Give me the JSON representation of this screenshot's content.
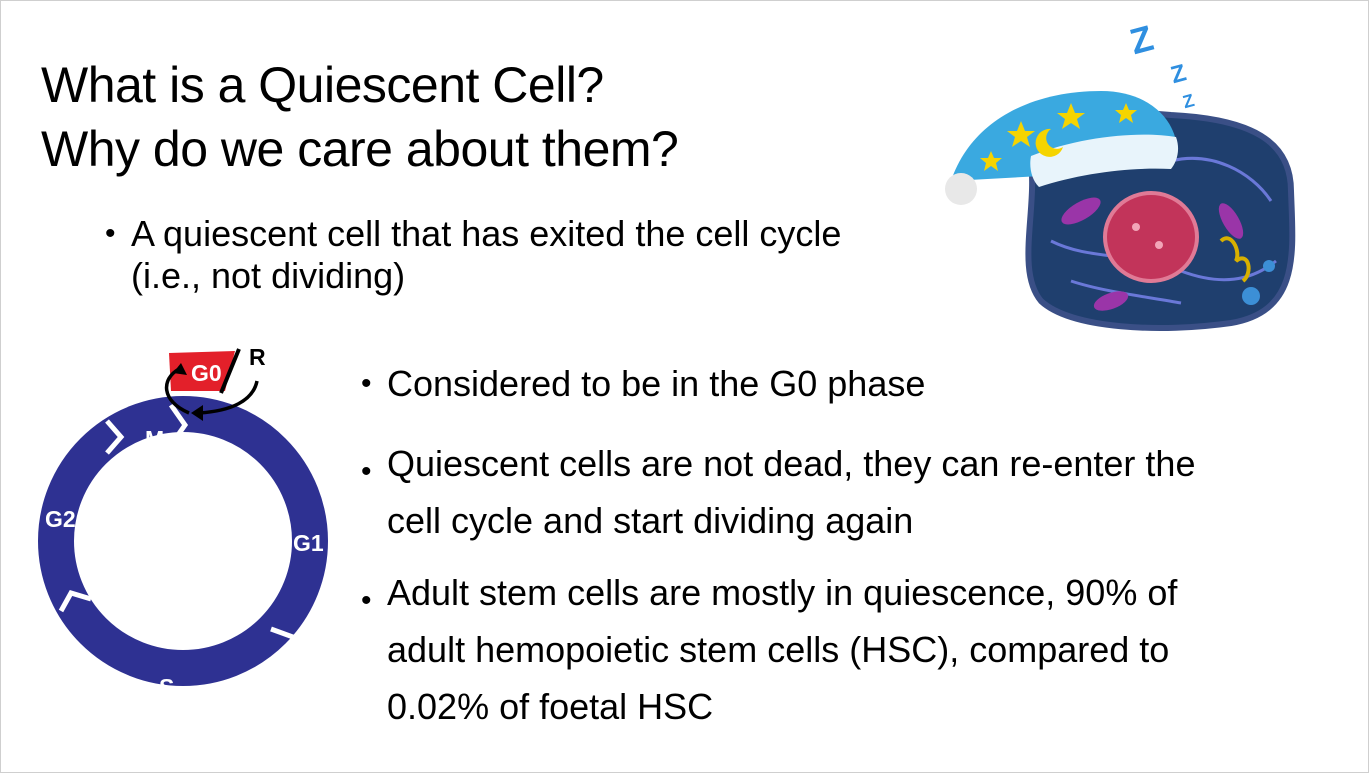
{
  "slide": {
    "title_line1": "What is a Quiescent Cell?",
    "title_line2": "Why do we care about them?",
    "bullet_char": "•",
    "bullet1": {
      "line1": "A quiescent cell that has exited the cell cycle",
      "line2": "(i.e., not dividing)"
    },
    "bullet2": "Considered to be in the G0 phase",
    "bullet3": {
      "line1": "Quiescent cells are not dead, they can re-enter the",
      "line2": "cell cycle and start dividing again"
    },
    "bullet4": {
      "line1": "Adult stem cells are mostly in quiescence, 90% of",
      "line2": "adult hemopoietic stem cells (HSC), compared to",
      "line3": "0.02% of foetal HSC"
    }
  },
  "cell_cycle": {
    "phases": [
      "G0",
      "M",
      "G1",
      "S",
      "G2"
    ],
    "restriction_label": "R",
    "colors": {
      "ring": "#2e3192",
      "g0": "#e3202a",
      "arrow": "#000000"
    }
  },
  "cell_image": {
    "sleep_letters": [
      "Z",
      "Z",
      "Z"
    ],
    "colors": {
      "cell_body": "#1f3f6e",
      "nucleus": "#c2345a",
      "hat": "#3aa9e0",
      "stars": "#f5d400"
    }
  }
}
